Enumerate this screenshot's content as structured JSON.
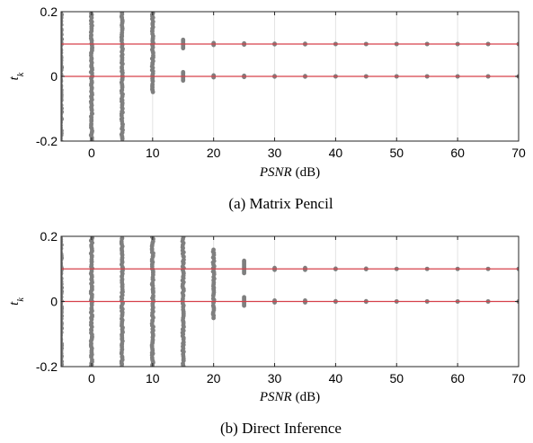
{
  "chart_data": [
    {
      "type": "scatter",
      "caption": "(a) Matrix Pencil",
      "xlabel": "PSNR",
      "xlabel_unit": "(dB)",
      "ylabel": "t",
      "ylabel_sub": "k",
      "xlim": [
        -5,
        70
      ],
      "ylim": [
        -0.2,
        0.2
      ],
      "xticks": [
        0,
        10,
        20,
        30,
        40,
        50,
        60,
        70
      ],
      "yticks": [
        -0.2,
        0,
        0.2
      ],
      "ytick_labels": [
        "-0.2",
        "0",
        "0.2"
      ],
      "grid": "vertical",
      "reference_lines": [
        0.0,
        0.1
      ],
      "reference_color": "#d6404a",
      "point_color": "#7f7f7f",
      "columns": [
        {
          "x": -5,
          "spread": [
            -0.2,
            0.2
          ]
        },
        {
          "x": 0,
          "spread": [
            -0.2,
            0.2
          ]
        },
        {
          "x": 5,
          "spread": [
            -0.2,
            0.2
          ]
        },
        {
          "x": 10,
          "spread": [
            -0.05,
            0.2
          ]
        },
        {
          "x": 15,
          "groups": [
            [
              0.087,
              0.113
            ],
            [
              -0.013,
              0.013
            ]
          ]
        },
        {
          "x": 20,
          "groups": [
            [
              0.097,
              0.103
            ],
            [
              -0.003,
              0.003
            ]
          ]
        },
        {
          "x": 25,
          "groups": [
            [
              0.098,
              0.102
            ],
            [
              -0.002,
              0.002
            ]
          ]
        },
        {
          "x": 30,
          "groups": [
            [
              0.099,
              0.101
            ],
            [
              -0.001,
              0.001
            ]
          ]
        },
        {
          "x": 35,
          "groups": [
            [
              0.099,
              0.101
            ],
            [
              -0.001,
              0.001
            ]
          ]
        },
        {
          "x": 40,
          "groups": [
            [
              0.1,
              0.1
            ],
            [
              0,
              0
            ]
          ]
        },
        {
          "x": 45,
          "groups": [
            [
              0.1,
              0.1
            ],
            [
              0,
              0
            ]
          ]
        },
        {
          "x": 50,
          "groups": [
            [
              0.1,
              0.1
            ],
            [
              0,
              0
            ]
          ]
        },
        {
          "x": 55,
          "groups": [
            [
              0.1,
              0.1
            ],
            [
              0,
              0
            ]
          ]
        },
        {
          "x": 60,
          "groups": [
            [
              0.1,
              0.1
            ],
            [
              0,
              0
            ]
          ]
        },
        {
          "x": 65,
          "groups": [
            [
              0.1,
              0.1
            ],
            [
              0,
              0
            ]
          ]
        },
        {
          "x": 70,
          "groups": [
            [
              0.1,
              0.1
            ],
            [
              0,
              0
            ]
          ]
        }
      ]
    },
    {
      "type": "scatter",
      "caption": "(b) Direct Inference",
      "xlabel": "PSNR",
      "xlabel_unit": "(dB)",
      "ylabel": "t",
      "ylabel_sub": "k",
      "xlim": [
        -5,
        70
      ],
      "ylim": [
        -0.2,
        0.2
      ],
      "xticks": [
        0,
        10,
        20,
        30,
        40,
        50,
        60,
        70
      ],
      "yticks": [
        -0.2,
        0,
        0.2
      ],
      "ytick_labels": [
        "-0.2",
        "0",
        "0.2"
      ],
      "grid": "vertical",
      "reference_lines": [
        0.0,
        0.1
      ],
      "reference_color": "#d6404a",
      "point_color": "#7f7f7f",
      "columns": [
        {
          "x": -5,
          "spread": [
            -0.2,
            0.2
          ]
        },
        {
          "x": 0,
          "spread": [
            -0.2,
            0.2
          ]
        },
        {
          "x": 5,
          "spread": [
            -0.2,
            0.2
          ]
        },
        {
          "x": 10,
          "spread": [
            -0.2,
            0.2
          ]
        },
        {
          "x": 15,
          "spread": [
            -0.2,
            0.2
          ]
        },
        {
          "x": 20,
          "spread": [
            -0.05,
            0.16
          ]
        },
        {
          "x": 25,
          "groups": [
            [
              0.087,
              0.125
            ],
            [
              -0.013,
              0.013
            ]
          ]
        },
        {
          "x": 30,
          "groups": [
            [
              0.097,
              0.103
            ],
            [
              -0.003,
              0.003
            ]
          ]
        },
        {
          "x": 35,
          "groups": [
            [
              0.097,
              0.103
            ],
            [
              -0.003,
              0.003
            ]
          ]
        },
        {
          "x": 40,
          "groups": [
            [
              0.099,
              0.101
            ],
            [
              -0.001,
              0.001
            ]
          ]
        },
        {
          "x": 45,
          "groups": [
            [
              0.099,
              0.101
            ],
            [
              -0.001,
              0.001
            ]
          ]
        },
        {
          "x": 50,
          "groups": [
            [
              0.1,
              0.1
            ],
            [
              0,
              0
            ]
          ]
        },
        {
          "x": 55,
          "groups": [
            [
              0.1,
              0.1
            ],
            [
              0,
              0
            ]
          ]
        },
        {
          "x": 60,
          "groups": [
            [
              0.1,
              0.1
            ],
            [
              0,
              0
            ]
          ]
        },
        {
          "x": 65,
          "groups": [
            [
              0.1,
              0.1
            ],
            [
              0,
              0
            ]
          ]
        },
        {
          "x": 70,
          "groups": [
            [
              0.1,
              0.1
            ],
            [
              0,
              0
            ]
          ]
        }
      ]
    }
  ]
}
